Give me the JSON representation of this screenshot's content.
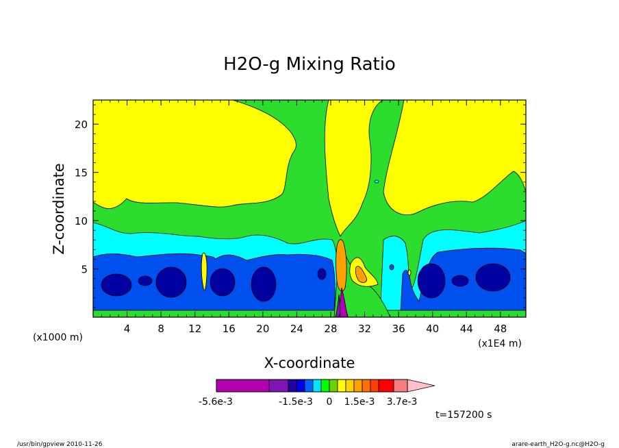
{
  "chart_data": {
    "type": "heatmap",
    "title": "H2O-g Mixing Ratio",
    "xlabel": "X-coordinate",
    "ylabel": "Z-coordinate",
    "x_unit_left": "(x1000 m)",
    "x_unit_right": "(x1E4 m)",
    "xlim": [
      0,
      51
    ],
    "ylim": [
      0,
      22.5
    ],
    "x_ticks": [
      "4",
      "8",
      "12",
      "16",
      "20",
      "24",
      "28",
      "32",
      "36",
      "40",
      "44",
      "48"
    ],
    "y_ticks": [
      "5",
      "10",
      "15",
      "20"
    ],
    "colorbar": {
      "colors": [
        "#b000b0",
        "#b000b0",
        "#b000b0",
        "#b000b0",
        "#7d16b4",
        "#2300a0",
        "#0000e6",
        "#0064ff",
        "#00e6ff",
        "#00ff00",
        "#6ecf00",
        "#ffff00",
        "#ffd200",
        "#ffa000",
        "#ff7000",
        "#ff4000",
        "#ff0000",
        "#f87e7e",
        "#ffc0cb"
      ],
      "labels": [
        "-5.6e-3",
        "-1.5e-3",
        "0",
        "1.5e-3",
        "3.7e-3"
      ]
    },
    "time_label": "t=157200 s"
  },
  "footer": {
    "left": "/usr/bin/gpview   2010-11-26",
    "right": "arare-earth_H2O-g.nc@H2O-g"
  },
  "colors": {
    "yellow": "#ffff00",
    "green": "#2ddd2d",
    "cyan": "#00ffff",
    "blue": "#0050f0",
    "darkblue": "#0000a0",
    "purple": "#b000b0"
  }
}
